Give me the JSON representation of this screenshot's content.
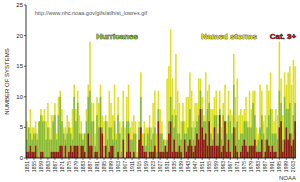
{
  "chart_data": {
    "type": "bar",
    "stacked": false,
    "grid": false,
    "ylabel": "NUMBER OF SYSTEMS",
    "annotations": [
      "http://www.nhc.noaa.gov/gifs/atlhist_lowres.gif",
      "NOAA"
    ],
    "ylim": [
      0,
      25
    ],
    "yticks": [
      0,
      5,
      10,
      15,
      20,
      25
    ],
    "categories": [
      "1851",
      null,
      null,
      null,
      "1855",
      null,
      null,
      null,
      "1859",
      null,
      null,
      null,
      "1863",
      null,
      null,
      null,
      "1867",
      null,
      null,
      null,
      "1871",
      null,
      null,
      null,
      "1875",
      null,
      null,
      null,
      "1879",
      null,
      null,
      null,
      "1883",
      null,
      null,
      null,
      "1887",
      null,
      null,
      null,
      "1891",
      null,
      null,
      null,
      "1895",
      null,
      null,
      null,
      "1899",
      null,
      null,
      null,
      "1903",
      null,
      null,
      null,
      "1907",
      null,
      null,
      null,
      "1911",
      null,
      null,
      null,
      "1915",
      null,
      null,
      null,
      "1919",
      null,
      null,
      null,
      "1923",
      null,
      null,
      null,
      "1927",
      null,
      null,
      null,
      "1931",
      null,
      null,
      null,
      "1935",
      null,
      null,
      null,
      "1939",
      null,
      null,
      null,
      "1943",
      null,
      null,
      null,
      "1947",
      null,
      null,
      null,
      "1951",
      null,
      null,
      null,
      "1955",
      null,
      null,
      null,
      "1959",
      null,
      null,
      null,
      "1963",
      null,
      null,
      null,
      "1967",
      null,
      null,
      null,
      "1971",
      null,
      null,
      null,
      "1975",
      null,
      null,
      null,
      "1979",
      null,
      null,
      null,
      "1983",
      null,
      null,
      null,
      "1987",
      null,
      null,
      null,
      "1991",
      null,
      null,
      null,
      "1995",
      null,
      null,
      null,
      "1999",
      null,
      null,
      null,
      "2003",
      null
    ],
    "series": [
      {
        "name": "Named storms",
        "color": "#dede22",
        "values": [
          6,
          5,
          8,
          5,
          5,
          6,
          4,
          6,
          8,
          7,
          8,
          6,
          9,
          5,
          7,
          7,
          9,
          4,
          10,
          11,
          8,
          5,
          5,
          7,
          6,
          5,
          8,
          12,
          8,
          11,
          7,
          6,
          4,
          4,
          8,
          12,
          19,
          9,
          9,
          4,
          10,
          9,
          12,
          7,
          6,
          7,
          6,
          11,
          9,
          7,
          12,
          4,
          10,
          6,
          5,
          11,
          5,
          10,
          12,
          5,
          6,
          7,
          6,
          1,
          6,
          14,
          4,
          6,
          5,
          5,
          7,
          5,
          9,
          11,
          4,
          11,
          8,
          6,
          3,
          3,
          13,
          15,
          21,
          13,
          8,
          17,
          11,
          9,
          6,
          9,
          6,
          10,
          10,
          14,
          11,
          6,
          9,
          9,
          13,
          13,
          10,
          7,
          14,
          11,
          12,
          8,
          8,
          10,
          11,
          7,
          11,
          5,
          9,
          12,
          6,
          11,
          8,
          7,
          17,
          10,
          13,
          7,
          8,
          7,
          8,
          10,
          6,
          11,
          8,
          11,
          11,
          5,
          4,
          12,
          11,
          6,
          7,
          12,
          11,
          14,
          8,
          6,
          8,
          7,
          19,
          13,
          7,
          14,
          12,
          14,
          15,
          12,
          16,
          15
        ]
      },
      {
        "name": "Hurricanes",
        "color": "#86b83a",
        "values": [
          3,
          5,
          4,
          3,
          4,
          4,
          3,
          6,
          7,
          6,
          6,
          3,
          5,
          3,
          3,
          6,
          7,
          3,
          7,
          10,
          6,
          4,
          3,
          4,
          5,
          4,
          3,
          10,
          6,
          9,
          4,
          4,
          3,
          4,
          6,
          10,
          11,
          6,
          6,
          2,
          7,
          5,
          10,
          5,
          2,
          6,
          3,
          5,
          5,
          3,
          6,
          3,
          7,
          4,
          1,
          6,
          0,
          6,
          6,
          3,
          3,
          4,
          4,
          0,
          5,
          10,
          2,
          4,
          2,
          4,
          5,
          3,
          4,
          5,
          1,
          8,
          4,
          4,
          3,
          2,
          3,
          6,
          10,
          7,
          5,
          7,
          4,
          4,
          3,
          6,
          4,
          4,
          5,
          8,
          5,
          3,
          5,
          6,
          7,
          11,
          8,
          6,
          6,
          8,
          9,
          4,
          3,
          7,
          7,
          4,
          8,
          3,
          7,
          6,
          4,
          7,
          6,
          4,
          12,
          5,
          6,
          3,
          4,
          4,
          6,
          6,
          5,
          5,
          5,
          9,
          7,
          2,
          3,
          5,
          7,
          4,
          3,
          5,
          7,
          8,
          4,
          4,
          4,
          3,
          11,
          9,
          3,
          10,
          8,
          8,
          9,
          4,
          7,
          9
        ]
      },
      {
        "name": "Cat. 3+",
        "color": "#8c1818",
        "values": [
          1,
          1,
          2,
          1,
          1,
          2,
          0,
          0,
          1,
          1,
          0,
          0,
          0,
          0,
          1,
          1,
          1,
          1,
          1,
          2,
          2,
          0,
          2,
          0,
          1,
          2,
          1,
          2,
          2,
          2,
          0,
          2,
          2,
          1,
          0,
          4,
          2,
          2,
          0,
          1,
          1,
          0,
          5,
          4,
          0,
          2,
          0,
          1,
          2,
          2,
          0,
          0,
          1,
          0,
          0,
          3,
          0,
          1,
          4,
          1,
          0,
          1,
          0,
          0,
          3,
          5,
          2,
          1,
          1,
          0,
          1,
          1,
          1,
          2,
          0,
          6,
          1,
          1,
          1,
          2,
          1,
          4,
          6,
          1,
          3,
          1,
          1,
          2,
          1,
          0,
          3,
          1,
          2,
          3,
          2,
          1,
          2,
          4,
          3,
          8,
          5,
          3,
          4,
          2,
          6,
          2,
          2,
          5,
          2,
          2,
          7,
          1,
          2,
          6,
          1,
          3,
          1,
          0,
          5,
          2,
          1,
          0,
          1,
          2,
          3,
          2,
          1,
          2,
          2,
          2,
          3,
          1,
          1,
          1,
          3,
          0,
          1,
          3,
          2,
          1,
          2,
          1,
          1,
          0,
          5,
          6,
          1,
          3,
          5,
          3,
          4,
          2,
          3,
          6
        ]
      }
    ]
  }
}
